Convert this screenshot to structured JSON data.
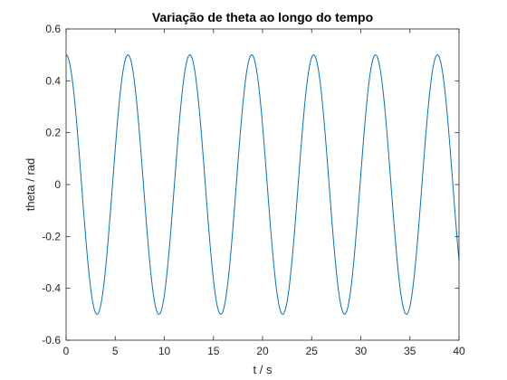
{
  "chart_data": {
    "type": "line",
    "title": "Variação de theta ao longo do tempo",
    "xlabel": "t / s",
    "ylabel": "theta / rad",
    "xlim": [
      0,
      40
    ],
    "ylim": [
      -0.6,
      0.6
    ],
    "xticks": [
      "0",
      "5",
      "10",
      "15",
      "20",
      "25",
      "30",
      "35",
      "40"
    ],
    "yticks": [
      "-0.6",
      "-0.4",
      "-0.2",
      "0",
      "0.2",
      "0.4",
      "0.6"
    ],
    "grid": false,
    "series": [
      {
        "color": "#0072BD",
        "function": "theta = 0.5*cos(2*pi*t/6.3)",
        "amplitude": 0.5,
        "period": 6.3,
        "x_start": 0,
        "x_end": 40,
        "peaks_x": [
          0,
          6.3,
          12.6,
          18.9,
          25.2,
          31.5,
          37.8
        ],
        "troughs_x": [
          3.15,
          9.45,
          15.75,
          22.05,
          28.35,
          34.65
        ]
      }
    ]
  }
}
